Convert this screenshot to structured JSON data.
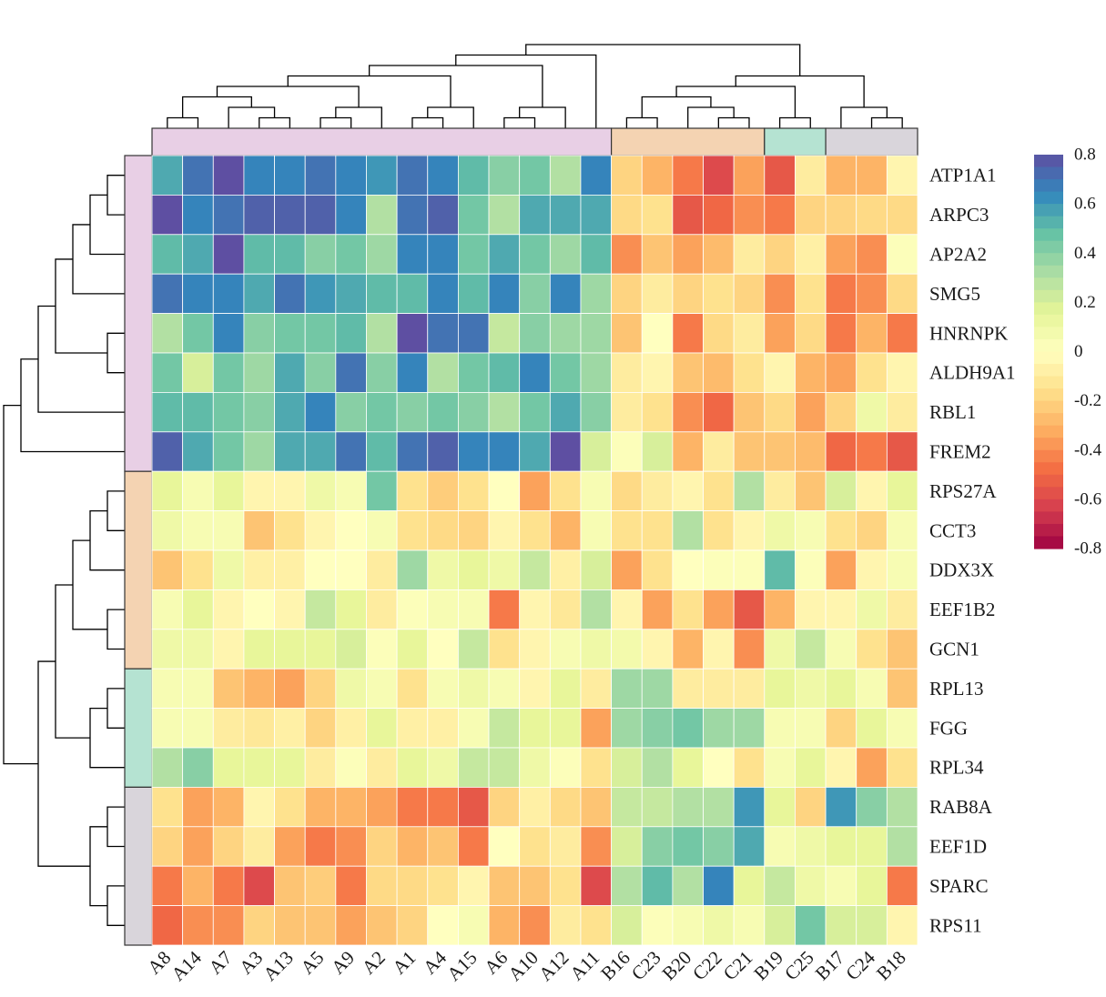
{
  "chart_data": {
    "type": "heatmap",
    "title": "",
    "columns": [
      "A8",
      "A14",
      "A7",
      "A3",
      "A13",
      "A5",
      "A9",
      "A2",
      "A1",
      "A4",
      "A15",
      "A6",
      "A10",
      "A12",
      "A11",
      "B16",
      "C23",
      "B20",
      "C22",
      "C21",
      "B19",
      "C25",
      "B17",
      "C24",
      "B18"
    ],
    "rows": [
      "ATP1A1",
      "ARPC3",
      "AP2A2",
      "SMG5",
      "HNRNPK",
      "ALDH9A1",
      "RBL1",
      "FREM2",
      "RPS27A",
      "CCT3",
      "DDX3X",
      "EEF1B2",
      "GCN1",
      "RPL13",
      "FGG",
      "RPL34",
      "RAB8A",
      "EEF1D",
      "SPARC",
      "RPS11"
    ],
    "values": [
      [
        0.55,
        0.7,
        0.8,
        0.65,
        0.65,
        0.7,
        0.65,
        0.6,
        0.7,
        0.65,
        0.5,
        0.4,
        0.45,
        0.3,
        0.65,
        -0.2,
        -0.3,
        -0.45,
        -0.6,
        -0.35,
        -0.55,
        -0.1,
        -0.3,
        -0.3,
        -0.05
      ],
      [
        0.8,
        0.65,
        0.7,
        0.75,
        0.75,
        0.75,
        0.65,
        0.3,
        0.7,
        0.75,
        0.45,
        0.3,
        0.55,
        0.55,
        0.55,
        -0.18,
        -0.15,
        -0.55,
        -0.5,
        -0.4,
        -0.45,
        -0.2,
        -0.2,
        -0.18,
        -0.18
      ],
      [
        0.5,
        0.55,
        0.8,
        0.5,
        0.5,
        0.4,
        0.45,
        0.35,
        0.65,
        0.65,
        0.45,
        0.55,
        0.45,
        0.35,
        0.5,
        -0.4,
        -0.25,
        -0.35,
        -0.28,
        -0.1,
        -0.2,
        -0.08,
        -0.35,
        -0.4,
        0.02
      ],
      [
        0.7,
        0.65,
        0.65,
        0.55,
        0.7,
        0.6,
        0.55,
        0.5,
        0.5,
        0.65,
        0.5,
        0.65,
        0.4,
        0.65,
        0.35,
        -0.2,
        -0.1,
        -0.2,
        -0.15,
        -0.2,
        -0.4,
        -0.15,
        -0.45,
        -0.4,
        -0.18
      ],
      [
        0.3,
        0.45,
        0.65,
        0.4,
        0.45,
        0.45,
        0.5,
        0.3,
        0.8,
        0.7,
        0.7,
        0.25,
        0.4,
        0.35,
        0.35,
        -0.25,
        0.0,
        -0.45,
        -0.18,
        -0.1,
        -0.35,
        -0.18,
        -0.45,
        -0.3,
        -0.45
      ],
      [
        0.45,
        0.2,
        0.45,
        0.35,
        0.55,
        0.4,
        0.7,
        0.4,
        0.65,
        0.3,
        0.45,
        0.5,
        0.65,
        0.45,
        0.35,
        -0.1,
        -0.05,
        -0.25,
        -0.28,
        -0.15,
        -0.05,
        -0.3,
        -0.35,
        -0.15,
        -0.05
      ],
      [
        0.5,
        0.5,
        0.45,
        0.4,
        0.55,
        0.65,
        0.4,
        0.45,
        0.4,
        0.45,
        0.4,
        0.3,
        0.45,
        0.55,
        0.4,
        -0.1,
        -0.15,
        -0.4,
        -0.5,
        -0.25,
        -0.18,
        -0.35,
        -0.2,
        0.1,
        -0.1
      ],
      [
        0.75,
        0.55,
        0.45,
        0.35,
        0.55,
        0.55,
        0.7,
        0.5,
        0.7,
        0.75,
        0.65,
        0.65,
        0.55,
        0.8,
        0.2,
        0.02,
        0.2,
        -0.3,
        -0.1,
        -0.25,
        -0.25,
        -0.28,
        -0.5,
        -0.45,
        -0.55
      ],
      [
        0.15,
        0.05,
        0.15,
        -0.05,
        -0.05,
        0.1,
        0.05,
        0.45,
        -0.15,
        -0.22,
        -0.15,
        0.0,
        -0.35,
        -0.15,
        0.05,
        -0.18,
        -0.1,
        -0.05,
        -0.15,
        0.3,
        -0.1,
        -0.25,
        0.2,
        -0.05,
        0.15
      ],
      [
        0.1,
        0.05,
        0.05,
        -0.25,
        -0.15,
        -0.05,
        0.0,
        0.05,
        -0.15,
        -0.18,
        -0.2,
        -0.05,
        -0.15,
        -0.3,
        0.05,
        -0.15,
        -0.15,
        0.3,
        -0.15,
        -0.05,
        0.1,
        0.05,
        -0.15,
        -0.2,
        0.05
      ],
      [
        -0.25,
        -0.15,
        0.1,
        -0.08,
        -0.08,
        0.0,
        0.0,
        -0.1,
        0.35,
        0.1,
        0.15,
        0.1,
        0.25,
        -0.08,
        0.2,
        -0.35,
        -0.15,
        0.0,
        0.02,
        0.02,
        0.5,
        0.02,
        -0.35,
        -0.05,
        0.05
      ],
      [
        0.05,
        0.15,
        -0.05,
        0.0,
        -0.05,
        0.25,
        0.15,
        -0.1,
        0.02,
        0.05,
        0.05,
        -0.45,
        -0.05,
        -0.12,
        0.3,
        -0.05,
        -0.35,
        -0.15,
        -0.35,
        -0.55,
        -0.3,
        -0.05,
        -0.05,
        0.1,
        -0.1
      ],
      [
        0.1,
        0.1,
        -0.05,
        0.15,
        0.15,
        0.15,
        0.2,
        0.02,
        0.15,
        0.0,
        0.25,
        -0.15,
        -0.05,
        0.05,
        0.1,
        0.08,
        -0.05,
        -0.3,
        -0.05,
        -0.4,
        0.1,
        0.25,
        0.05,
        -0.15,
        -0.25
      ],
      [
        0.05,
        0.05,
        -0.25,
        -0.3,
        -0.35,
        -0.2,
        0.1,
        0.05,
        -0.15,
        0.05,
        0.1,
        0.05,
        -0.05,
        0.15,
        -0.1,
        0.35,
        0.35,
        -0.1,
        -0.1,
        -0.1,
        0.15,
        0.1,
        0.15,
        0.05,
        -0.25
      ],
      [
        0.05,
        0.05,
        -0.1,
        -0.12,
        -0.08,
        -0.2,
        -0.08,
        0.15,
        -0.08,
        -0.08,
        0.05,
        0.25,
        0.15,
        0.15,
        -0.35,
        0.35,
        0.4,
        0.45,
        0.35,
        0.35,
        0.05,
        0.05,
        -0.2,
        0.15,
        0.05
      ],
      [
        0.3,
        0.4,
        0.15,
        0.15,
        0.15,
        -0.1,
        0.02,
        -0.1,
        0.15,
        0.1,
        0.25,
        0.25,
        0.1,
        0.02,
        -0.15,
        0.2,
        0.3,
        0.15,
        0.0,
        -0.15,
        0.05,
        0.15,
        -0.05,
        -0.35,
        -0.15
      ],
      [
        -0.15,
        -0.35,
        -0.3,
        -0.05,
        -0.15,
        -0.3,
        -0.3,
        -0.35,
        -0.45,
        -0.45,
        -0.55,
        -0.2,
        -0.08,
        -0.18,
        -0.25,
        0.25,
        0.25,
        0.3,
        0.3,
        0.6,
        0.15,
        -0.2,
        0.6,
        0.4,
        0.3
      ],
      [
        -0.2,
        -0.35,
        -0.2,
        -0.1,
        -0.35,
        -0.45,
        -0.4,
        -0.2,
        -0.3,
        -0.25,
        -0.45,
        0.0,
        -0.15,
        -0.1,
        -0.4,
        0.2,
        0.4,
        0.45,
        0.4,
        0.55,
        0.05,
        0.1,
        0.15,
        0.15,
        0.3
      ],
      [
        -0.45,
        -0.3,
        -0.45,
        -0.6,
        -0.25,
        -0.22,
        -0.45,
        -0.18,
        -0.18,
        -0.15,
        -0.05,
        -0.25,
        -0.25,
        -0.15,
        -0.6,
        0.3,
        0.5,
        0.3,
        0.65,
        0.15,
        0.25,
        0.1,
        0.05,
        0.15,
        -0.45
      ],
      [
        -0.5,
        -0.4,
        -0.4,
        -0.2,
        -0.25,
        -0.25,
        -0.35,
        -0.25,
        -0.2,
        0.0,
        0.05,
        -0.3,
        -0.4,
        -0.1,
        -0.15,
        0.2,
        0.02,
        0.05,
        0.1,
        0.05,
        0.2,
        0.45,
        0.2,
        0.2,
        -0.05
      ]
    ],
    "colorbar": {
      "colormap": "Spectral",
      "range": [
        -0.8,
        0.8
      ],
      "ticks": [
        "0.8",
        "0.6",
        "0.4",
        "0.2",
        "0",
        "-0.2",
        "-0.4",
        "-0.6",
        "-0.8"
      ]
    },
    "column_groups": [
      {
        "color": "#e8cfe5",
        "span": 15
      },
      {
        "color": "#f4d3b2",
        "span": 5
      },
      {
        "color": "#b5e3d2",
        "span": 2
      },
      {
        "color": "#d9d5db",
        "span": 3
      }
    ],
    "row_groups": [
      {
        "color": "#e8cfe5",
        "span": 8
      },
      {
        "color": "#f4d3b2",
        "span": 5
      },
      {
        "color": "#b5e3d2",
        "span": 3
      },
      {
        "color": "#d9d5db",
        "span": 4
      }
    ],
    "grid": true,
    "legend": "right"
  }
}
